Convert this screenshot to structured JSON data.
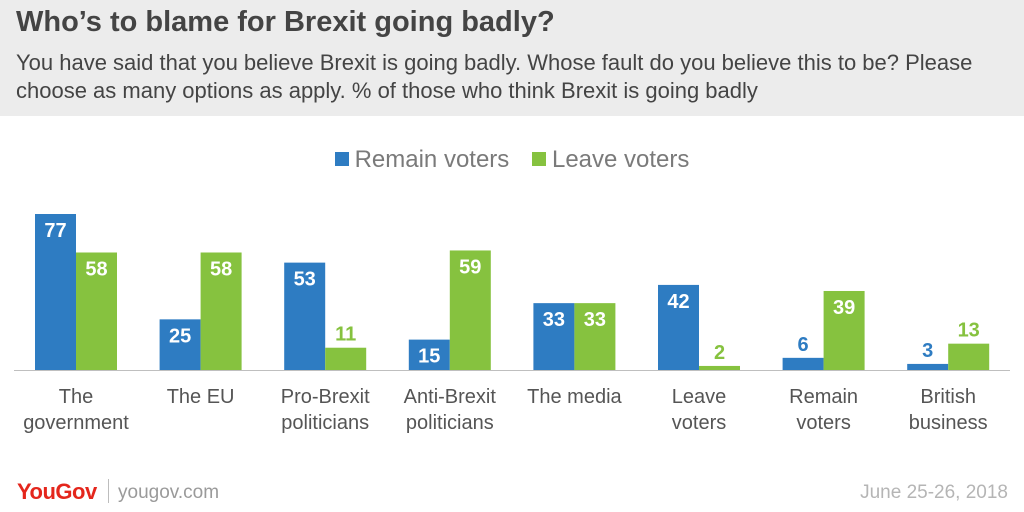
{
  "header": {
    "title": "Who’s to blame for Brexit going badly?",
    "subtitle": "You have said that you believe Brexit is going badly. Whose fault do you believe this to be? Please choose as many options as apply. % of those who think Brexit is going badly"
  },
  "legend": {
    "remain": "Remain voters",
    "leave": "Leave voters"
  },
  "colors": {
    "remain": "#2e7cc2",
    "leave": "#86c23f",
    "label_text": "#555555"
  },
  "chart_data": {
    "type": "bar",
    "categories": [
      [
        "The",
        "government"
      ],
      [
        "The EU"
      ],
      [
        "Pro-Brexit",
        "politicians"
      ],
      [
        "Anti-Brexit",
        "politicians"
      ],
      [
        "The media"
      ],
      [
        "Leave",
        "voters"
      ],
      [
        "Remain",
        "voters"
      ],
      [
        "British",
        "business"
      ]
    ],
    "series": [
      {
        "name": "Remain voters",
        "values": [
          77,
          25,
          53,
          15,
          33,
          42,
          6,
          3
        ]
      },
      {
        "name": "Leave voters",
        "values": [
          58,
          58,
          11,
          59,
          33,
          2,
          39,
          13
        ]
      }
    ],
    "ylim": [
      0,
      77
    ],
    "grid": false,
    "data_labels": true,
    "legend_position": "top-center"
  },
  "footer": {
    "brand": "YouGov",
    "url": "yougov.com",
    "date": "June 25-26, 2018"
  }
}
